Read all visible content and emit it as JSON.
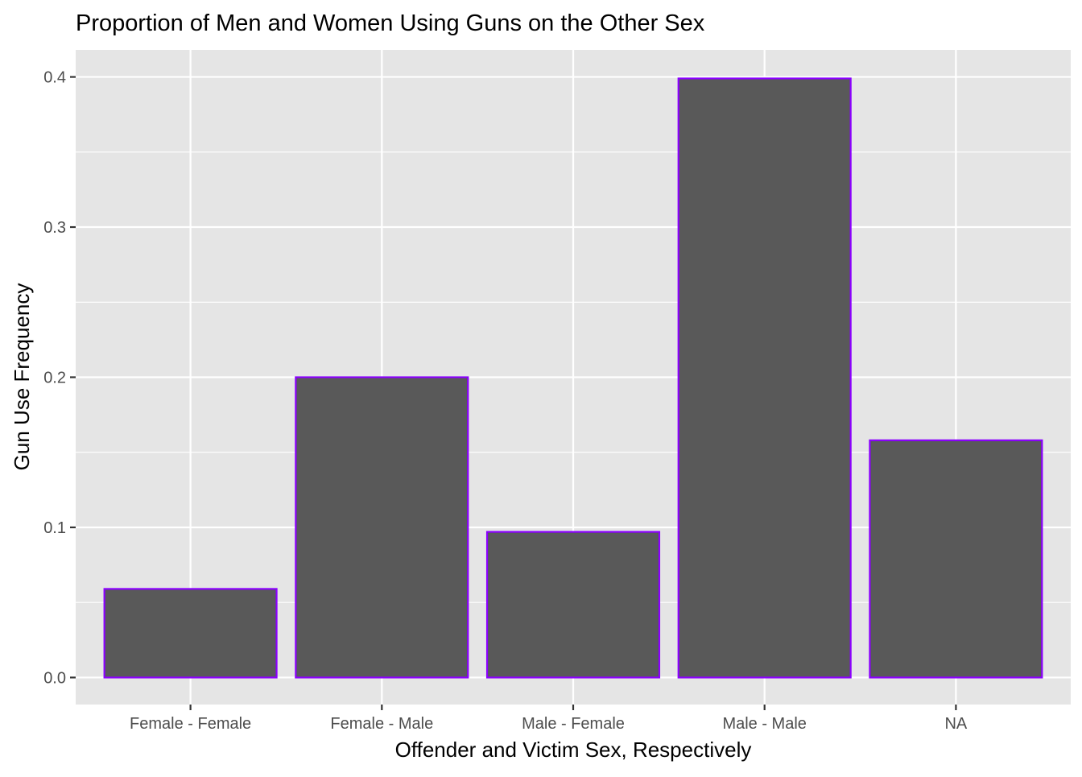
{
  "chart_data": {
    "type": "bar",
    "title": "Proportion of Men and Women Using Guns on the Other Sex",
    "xlabel": "Offender and Victim Sex, Respectively",
    "ylabel": "Gun Use Frequency",
    "categories": [
      "Female - Female",
      "Female - Male",
      "Male - Female",
      "Male - Male",
      "NA"
    ],
    "values": [
      0.059,
      0.2,
      0.097,
      0.399,
      0.158
    ],
    "ylim": [
      -0.018,
      0.418
    ],
    "yticks": [
      0.0,
      0.1,
      0.2,
      0.3,
      0.4
    ],
    "ytick_labels": [
      "0.0",
      "0.1",
      "0.2",
      "0.3",
      "0.4"
    ],
    "grid": true,
    "legend": "none",
    "colors": {
      "panel_background": "#e5e5e5",
      "grid_major": "#ffffff",
      "bar_fill": "#595959",
      "bar_outline": "#8b00ff",
      "tick_text": "#4d4d4d",
      "title_text": "#000000"
    }
  }
}
